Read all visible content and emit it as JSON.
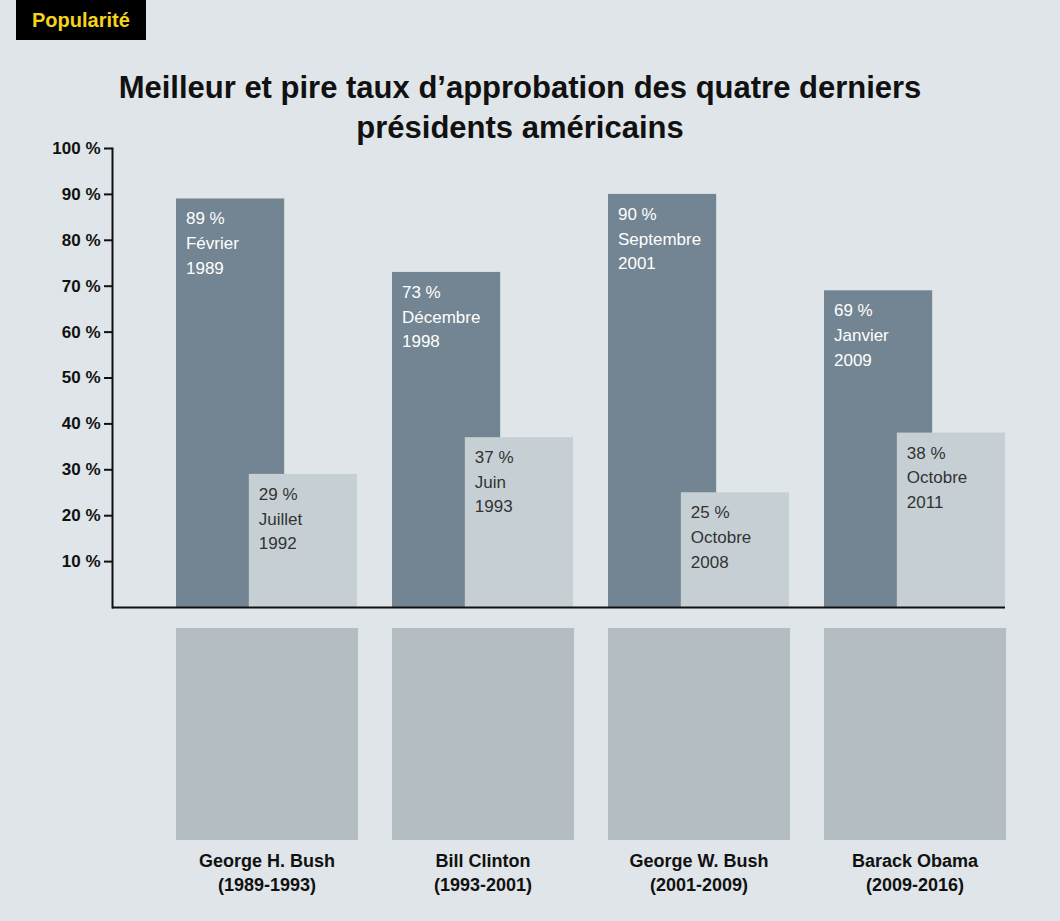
{
  "chart_data": {
    "type": "bar",
    "kicker": "Popularité",
    "title": "Meilleur et pire taux d’approbation des quatre derniers présidents américains",
    "categories": [
      "George H. Bush",
      "Bill Clinton",
      "George W. Bush",
      "Barack Obama"
    ],
    "periods": [
      "(1989-1993)",
      "(1993-2001)",
      "(2001-2009)",
      "(2009-2016)"
    ],
    "series": [
      {
        "color": "#738592",
        "values": [
          89,
          73,
          90,
          69
        ],
        "value_labels": [
          "89 %",
          "73 %",
          "90 %",
          "69 %"
        ],
        "dates": [
          "Février 1989",
          "Décembre 1998",
          "Septembre 2001",
          "Janvier 2009"
        ]
      },
      {
        "color": "#c6d0d4",
        "values": [
          29,
          37,
          25,
          38
        ],
        "value_labels": [
          "29 %",
          "37 %",
          "25 %",
          "38 %"
        ],
        "dates": [
          "Juillet 1992",
          "Juin 1993",
          "Octobre 2008",
          "Octobre 2011"
        ]
      }
    ],
    "ylim": [
      0,
      100
    ],
    "yticks": [
      {
        "value": 10,
        "label": "10 %"
      },
      {
        "value": 20,
        "label": "20 %"
      },
      {
        "value": 30,
        "label": "30 %"
      },
      {
        "value": 40,
        "label": "40 %"
      },
      {
        "value": 50,
        "label": "50 %"
      },
      {
        "value": 60,
        "label": "60 %"
      },
      {
        "value": 70,
        "label": "70 %"
      },
      {
        "value": 80,
        "label": "80 %"
      },
      {
        "value": 90,
        "label": "90 %"
      },
      {
        "value": 100,
        "label": "100 %"
      }
    ],
    "grid": false,
    "data_labels": true
  }
}
